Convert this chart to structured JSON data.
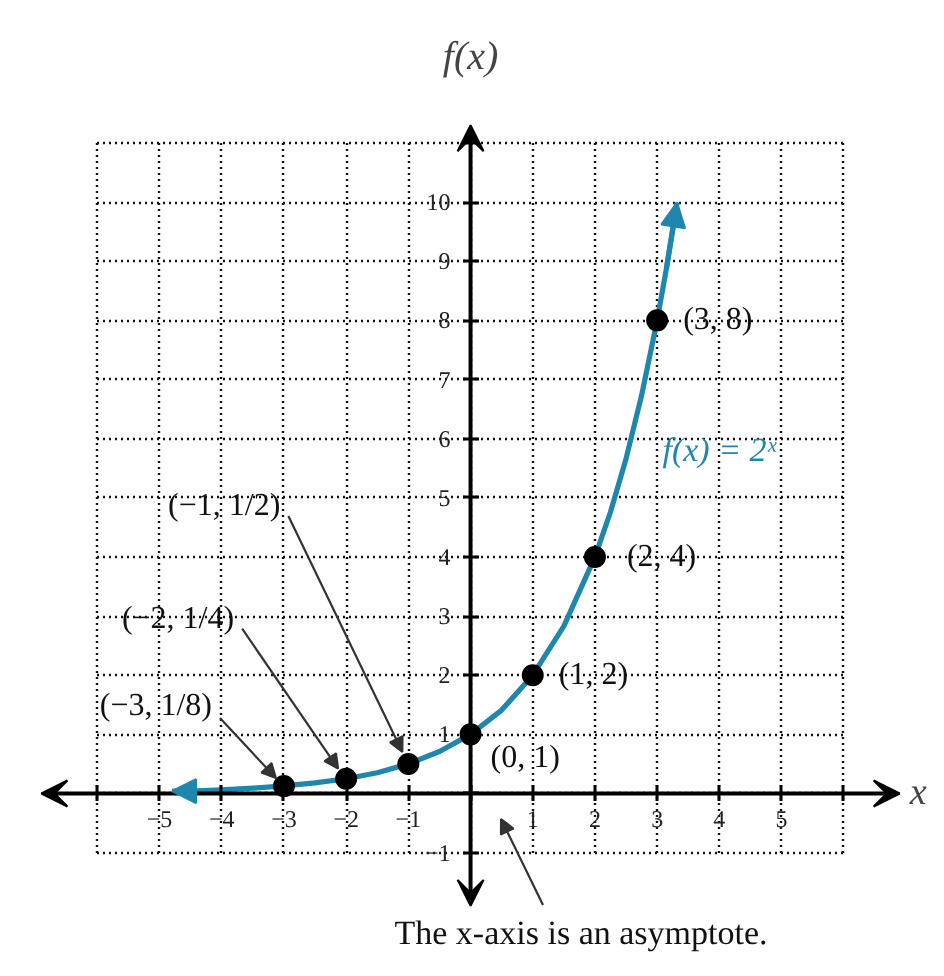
{
  "chart_data": {
    "type": "line",
    "xlabel": "x",
    "ylabel": "f(x)",
    "xlim": [
      -6.9,
      6.9
    ],
    "ylim": [
      -1.9,
      11.3
    ],
    "xticks": [
      {
        "value": -6,
        "label": null
      },
      {
        "value": -5,
        "label": "−5"
      },
      {
        "value": -4,
        "label": "−4"
      },
      {
        "value": -3,
        "label": "−3"
      },
      {
        "value": -2,
        "label": "−2"
      },
      {
        "value": -1,
        "label": "−1"
      },
      {
        "value": 0,
        "label": null
      },
      1,
      2,
      3,
      4,
      5,
      {
        "value": 6,
        "label": null
      }
    ],
    "yticks": [
      {
        "value": -1,
        "label": "−1"
      },
      {
        "value": 0,
        "label": null
      },
      1,
      2,
      3,
      4,
      5,
      6,
      7,
      8,
      9,
      10,
      {
        "value": 11,
        "label": null
      }
    ],
    "grid": true,
    "series": [
      {
        "name": "f(x) = 2ˣ",
        "color": "#1f86ad",
        "marker": "none",
        "line_style": "solid",
        "x": [
          -4.8,
          -4.5,
          -4,
          -3.5,
          -3,
          -2.5,
          -2,
          -1.5,
          -1,
          -0.5,
          0,
          0.5,
          1,
          1.5,
          2,
          2.25,
          2.5,
          2.75,
          3,
          3.15,
          3.32
        ],
        "values": [
          0.04,
          0.04,
          0.06,
          0.09,
          0.13,
          0.18,
          0.25,
          0.35,
          0.5,
          0.71,
          1,
          1.41,
          2,
          2.83,
          4,
          4.76,
          5.66,
          6.73,
          8,
          8.88,
          9.99
        ]
      },
      {
        "type": "scatter",
        "color": "#000000",
        "marker": "circle",
        "x": [
          -3,
          -2,
          -1,
          0,
          1,
          2,
          3
        ],
        "values": [
          0.125,
          0.25,
          0.5,
          1,
          2,
          4,
          8
        ],
        "value_labels": [
          null,
          null,
          null,
          "(0, 1)",
          "(1, 2)",
          "(2, 4)",
          "(3, 8)"
        ]
      }
    ],
    "annotations": [
      {
        "text": "(−3, 1/8)",
        "x": -3,
        "y": 0.125
      },
      {
        "text": "(−2, 1/4)",
        "x": -2,
        "y": 0.25
      },
      {
        "text": "(−1, 1/2)",
        "x": -1,
        "y": 0.5
      },
      "The x-axis is an asymptote."
    ]
  }
}
